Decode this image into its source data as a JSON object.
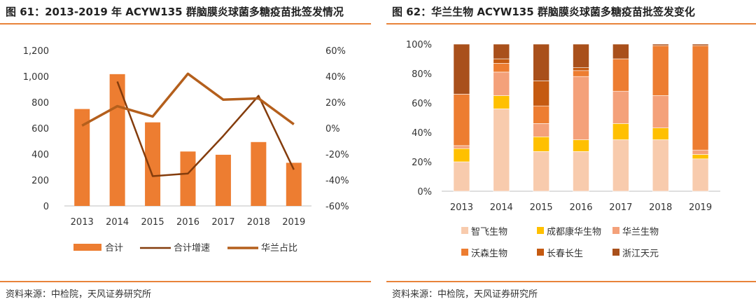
{
  "chart_data": [
    {
      "type": "bar+line",
      "title": "图 61：2013-2019 年 ACYW135 群脑膜炎球菌多糖疫苗批签发情况",
      "categories": [
        "2013",
        "2014",
        "2015",
        "2016",
        "2017",
        "2018",
        "2019"
      ],
      "y_left": {
        "ylim": [
          0,
          1200
        ],
        "ticks": [
          "0",
          "200",
          "400",
          "600",
          "800",
          "1,000",
          "1,200"
        ]
      },
      "y_right": {
        "ylim": [
          -60,
          60
        ],
        "ticks": [
          "-60%",
          "-40%",
          "-20%",
          "0%",
          "20%",
          "40%",
          "60%"
        ]
      },
      "grid": false,
      "legend_position": "bottom",
      "series": [
        {
          "name": "合计",
          "kind": "bar",
          "axis": "left",
          "color": "#ed7d31",
          "values": [
            748,
            1017,
            645,
            420,
            395,
            493,
            333
          ]
        },
        {
          "name": "合计增速",
          "kind": "line",
          "axis": "right",
          "color": "#843c0c",
          "values": [
            null,
            36,
            -37,
            -35,
            -6,
            25,
            -32
          ]
        },
        {
          "name": "华兰占比",
          "kind": "line",
          "axis": "right",
          "color": "#b45f1c",
          "values": [
            2,
            17,
            9,
            42,
            22,
            23,
            3
          ]
        }
      ],
      "source": "资料来源：中检院，天风证券研究所"
    },
    {
      "type": "stacked_bar_100",
      "title": "图 62：华兰生物 ACYW135 群脑膜炎球菌多糖疫苗批签发变化",
      "categories": [
        "2013",
        "2014",
        "2015",
        "2016",
        "2017",
        "2018",
        "2019"
      ],
      "y": {
        "ylim": [
          0,
          100
        ],
        "ticks": [
          "0%",
          "20%",
          "40%",
          "60%",
          "80%",
          "100%"
        ]
      },
      "grid": false,
      "legend_position": "bottom",
      "series": [
        {
          "name": "智飞生物",
          "color": "#f8cbad",
          "values": [
            20,
            56,
            27,
            27,
            35,
            35,
            22
          ]
        },
        {
          "name": "成都康华生物",
          "color": "#ffc000",
          "values": [
            9,
            9,
            10,
            8,
            11,
            8,
            3
          ]
        },
        {
          "name": "华兰生物",
          "color": "#f4a17a",
          "values": [
            2,
            16,
            9,
            43,
            22,
            22,
            3
          ]
        },
        {
          "name": "沃森生物",
          "color": "#ed7d31",
          "values": [
            35,
            6,
            12,
            4,
            22,
            34,
            71
          ]
        },
        {
          "name": "长春长生",
          "color": "#c55a11",
          "values": [
            0,
            3,
            17,
            2,
            0,
            0,
            0
          ]
        },
        {
          "name": "浙江天元",
          "color": "#a9501b",
          "values": [
            34,
            10,
            25,
            16,
            10,
            1,
            1
          ]
        }
      ],
      "source": "资料来源：中检院，天风证券研究所"
    }
  ]
}
